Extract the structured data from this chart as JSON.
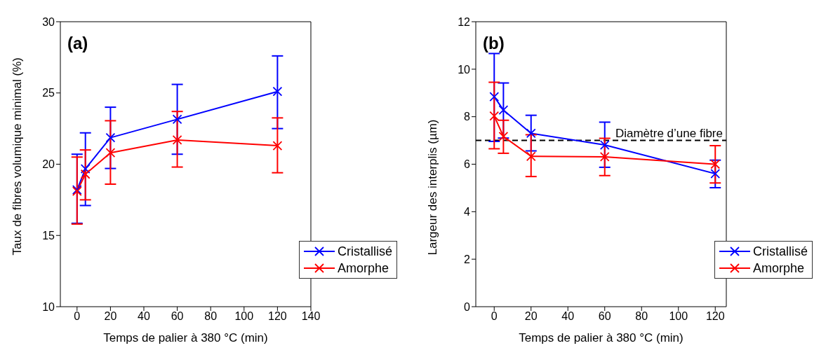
{
  "chart_data": [
    {
      "type": "line",
      "xlabel": "Temps de palier à 380 °C (min)",
      "ylabel": "Taux de fibres volumique minimal (%)",
      "annotations": [
        "(a)"
      ],
      "x": [
        0,
        5,
        20,
        60,
        120
      ],
      "series": [
        {
          "name": "Cristallisé",
          "color": "#0000ff",
          "values": [
            18.2,
            19.67,
            21.86,
            23.15,
            25.1
          ],
          "errors": [
            [
              15.85,
              20.7
            ],
            [
              17.1,
              22.2
            ],
            [
              19.7,
              24.0
            ],
            [
              20.7,
              25.6
            ],
            [
              22.5,
              27.6
            ]
          ]
        },
        {
          "name": "Amorphe",
          "color": "#ff0000",
          "values": [
            18.1,
            19.3,
            20.8,
            21.7,
            21.3
          ],
          "errors": [
            [
              15.8,
              20.5
            ],
            [
              17.5,
              21.0
            ],
            [
              18.6,
              23.05
            ],
            [
              19.8,
              23.7
            ],
            [
              19.4,
              23.25
            ]
          ]
        }
      ],
      "xlim": [
        -10,
        140
      ],
      "xticks": [
        0,
        20,
        40,
        60,
        80,
        100,
        120,
        140
      ],
      "ylim": [
        10,
        30
      ],
      "yticks": [
        10,
        15,
        20,
        25,
        30
      ],
      "grid": false,
      "legend": "bottom right",
      "marker": "cross",
      "line_style": "solid"
    },
    {
      "type": "line",
      "xlabel": "Temps de palier à 380 °C (min)",
      "ylabel": "Largeur des interplis (µm)",
      "annotations": [
        "(b)"
      ],
      "x": [
        0,
        5,
        20,
        60,
        120
      ],
      "series": [
        {
          "name": "Cristallisé",
          "color": "#0000ff",
          "values": [
            8.84,
            8.28,
            7.3,
            6.81,
            5.6
          ],
          "errors": [
            [
              6.96,
              10.66
            ],
            [
              7.1,
              9.42
            ],
            [
              6.56,
              8.06
            ],
            [
              5.87,
              7.77
            ],
            [
              5.01,
              6.17
            ]
          ]
        },
        {
          "name": "Amorphe",
          "color": "#ff0000",
          "values": [
            8.03,
            7.17,
            6.33,
            6.31,
            6.0
          ],
          "errors": [
            [
              6.65,
              9.45
            ],
            [
              6.46,
              7.85
            ],
            [
              5.48,
              7.24
            ],
            [
              5.52,
              7.09
            ],
            [
              5.21,
              6.78
            ]
          ]
        }
      ],
      "ref_lines": [
        {
          "axis": "y",
          "value": 7,
          "label": "Diamètre d’une fibre",
          "color": "#000000",
          "line_style": "dashed"
        }
      ],
      "xlim": [
        -10,
        126
      ],
      "xticks": [
        0,
        20,
        40,
        60,
        80,
        100,
        120
      ],
      "ylim": [
        0,
        12
      ],
      "yticks": [
        0,
        2,
        4,
        6,
        8,
        10,
        12
      ],
      "grid": false,
      "legend": "bottom right",
      "marker": "cross",
      "line_style": "solid"
    }
  ]
}
